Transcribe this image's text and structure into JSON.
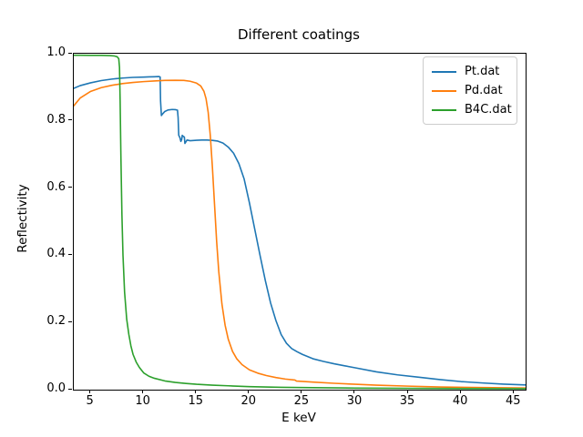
{
  "chart_data": {
    "type": "line",
    "title": "Different coatings",
    "xlabel": "E keV",
    "ylabel": "Reflectivity",
    "xlim": [
      3.4,
      46.1
    ],
    "ylim": [
      0.0,
      1.0
    ],
    "xticks": [
      5,
      10,
      15,
      20,
      25,
      30,
      35,
      40,
      45
    ],
    "yticks": [
      "0.0",
      "0.2",
      "0.4",
      "0.6",
      "0.8",
      "1.0"
    ],
    "grid": false,
    "legend_position": "upper right",
    "background_color": "#ffffff",
    "axis_color": "#000000",
    "series": [
      {
        "name": "Pt.dat",
        "color": "#1f77b4",
        "points": [
          [
            3.4,
            0.897
          ],
          [
            4,
            0.905
          ],
          [
            5,
            0.9135
          ],
          [
            6,
            0.92
          ],
          [
            7,
            0.9245
          ],
          [
            8,
            0.9275
          ],
          [
            9,
            0.9295
          ],
          [
            10,
            0.9305
          ],
          [
            10.5,
            0.931
          ],
          [
            11,
            0.9315
          ],
          [
            11.45,
            0.932
          ],
          [
            11.56,
            0.931
          ],
          [
            11.6,
            0.86
          ],
          [
            11.68,
            0.816
          ],
          [
            11.8,
            0.821
          ],
          [
            12,
            0.828
          ],
          [
            12.3,
            0.8325
          ],
          [
            12.7,
            0.834
          ],
          [
            13,
            0.8335
          ],
          [
            13.2,
            0.832
          ],
          [
            13.26,
            0.81
          ],
          [
            13.32,
            0.757
          ],
          [
            13.42,
            0.751
          ],
          [
            13.52,
            0.739
          ],
          [
            13.6,
            0.745
          ],
          [
            13.65,
            0.757
          ],
          [
            13.75,
            0.754
          ],
          [
            13.85,
            0.752
          ],
          [
            13.9,
            0.733
          ],
          [
            14,
            0.738
          ],
          [
            14.1,
            0.743
          ],
          [
            14.4,
            0.741
          ],
          [
            15,
            0.7425
          ],
          [
            15.5,
            0.743
          ],
          [
            16,
            0.743
          ],
          [
            16.5,
            0.742
          ],
          [
            17,
            0.74
          ],
          [
            17.5,
            0.734
          ],
          [
            18,
            0.722
          ],
          [
            18.5,
            0.704
          ],
          [
            19,
            0.673
          ],
          [
            19.5,
            0.627
          ],
          [
            20,
            0.556
          ],
          [
            20.5,
            0.478
          ],
          [
            21,
            0.4
          ],
          [
            21.5,
            0.325
          ],
          [
            22,
            0.258
          ],
          [
            22.5,
            0.206
          ],
          [
            23,
            0.164
          ],
          [
            23.5,
            0.138
          ],
          [
            24,
            0.122
          ],
          [
            24.5,
            0.113
          ],
          [
            25,
            0.105
          ],
          [
            26,
            0.092
          ],
          [
            27,
            0.084
          ],
          [
            28,
            0.077
          ],
          [
            29,
            0.071
          ],
          [
            30,
            0.065
          ],
          [
            32,
            0.053
          ],
          [
            34,
            0.044
          ],
          [
            36,
            0.037
          ],
          [
            38,
            0.03
          ],
          [
            40,
            0.024
          ],
          [
            42,
            0.02
          ],
          [
            44,
            0.0165
          ],
          [
            46.1,
            0.014
          ]
        ]
      },
      {
        "name": "Pd.dat",
        "color": "#ff7f0e",
        "points": [
          [
            3.4,
            0.845
          ],
          [
            4,
            0.868
          ],
          [
            5,
            0.888
          ],
          [
            6,
            0.899
          ],
          [
            7,
            0.906
          ],
          [
            8,
            0.911
          ],
          [
            9,
            0.9145
          ],
          [
            10,
            0.917
          ],
          [
            11,
            0.919
          ],
          [
            12,
            0.9205
          ],
          [
            13,
            0.921
          ],
          [
            13.8,
            0.9205
          ],
          [
            14.4,
            0.918
          ],
          [
            15,
            0.9125
          ],
          [
            15.4,
            0.904
          ],
          [
            15.7,
            0.888
          ],
          [
            15.9,
            0.866
          ],
          [
            16.1,
            0.826
          ],
          [
            16.3,
            0.757
          ],
          [
            16.5,
            0.662
          ],
          [
            16.7,
            0.552
          ],
          [
            16.9,
            0.442
          ],
          [
            17.1,
            0.352
          ],
          [
            17.4,
            0.255
          ],
          [
            17.7,
            0.192
          ],
          [
            18,
            0.15
          ],
          [
            18.4,
            0.114
          ],
          [
            18.8,
            0.092
          ],
          [
            19.3,
            0.0745
          ],
          [
            20,
            0.059
          ],
          [
            20.8,
            0.049
          ],
          [
            21.6,
            0.042
          ],
          [
            22.5,
            0.036
          ],
          [
            23.4,
            0.0315
          ],
          [
            24.3,
            0.0285
          ],
          [
            24.45,
            0.0255
          ],
          [
            25,
            0.0245
          ],
          [
            26,
            0.0225
          ],
          [
            28,
            0.019
          ],
          [
            30,
            0.016
          ],
          [
            32,
            0.0135
          ],
          [
            35,
            0.0105
          ],
          [
            38,
            0.008
          ],
          [
            41,
            0.0065
          ],
          [
            44,
            0.0055
          ],
          [
            46.1,
            0.005
          ]
        ]
      },
      {
        "name": "B4C.dat",
        "color": "#2ca02c",
        "points": [
          [
            3.4,
            0.9955
          ],
          [
            4,
            0.9955
          ],
          [
            5,
            0.9952
          ],
          [
            6,
            0.995
          ],
          [
            6.8,
            0.9945
          ],
          [
            7.2,
            0.9935
          ],
          [
            7.5,
            0.991
          ],
          [
            7.65,
            0.985
          ],
          [
            7.72,
            0.96
          ],
          [
            7.78,
            0.86
          ],
          [
            7.85,
            0.7
          ],
          [
            7.95,
            0.52
          ],
          [
            8.05,
            0.4
          ],
          [
            8.2,
            0.29
          ],
          [
            8.4,
            0.21
          ],
          [
            8.6,
            0.165
          ],
          [
            8.8,
            0.13
          ],
          [
            9,
            0.105
          ],
          [
            9.3,
            0.082
          ],
          [
            9.6,
            0.066
          ],
          [
            10,
            0.05
          ],
          [
            10.5,
            0.04
          ],
          [
            11,
            0.034
          ],
          [
            12,
            0.026
          ],
          [
            13,
            0.0215
          ],
          [
            14,
            0.0185
          ],
          [
            15,
            0.016
          ],
          [
            16.5,
            0.0135
          ],
          [
            18,
            0.0115
          ],
          [
            20,
            0.009
          ],
          [
            23,
            0.007
          ],
          [
            26,
            0.0058
          ],
          [
            30,
            0.0047
          ],
          [
            35,
            0.0038
          ],
          [
            40,
            0.0032
          ],
          [
            46.1,
            0.0028
          ]
        ]
      }
    ]
  }
}
